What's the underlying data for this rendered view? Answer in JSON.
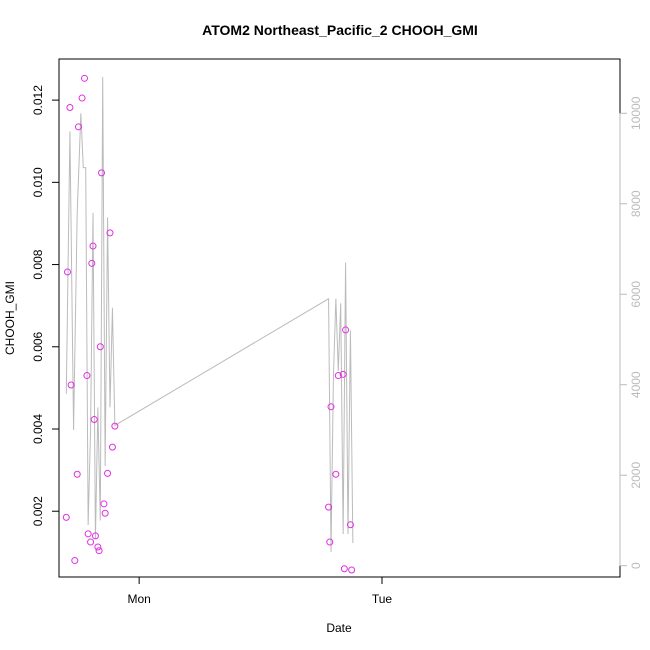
{
  "chart_data": {
    "type": "scatter",
    "title": "ATOM2 Northeast_Pacific_2 CHOOH_GMI",
    "xlabel": "Date",
    "ylabel": "CHOOH_GMI",
    "x_ticks": [
      {
        "label": "Mon",
        "value": 1.0
      },
      {
        "label": "Tue",
        "value": 2.0
      }
    ],
    "xlim": [
      0.67,
      2.98
    ],
    "ylim": [
      0.0004,
      0.013
    ],
    "y_ticks": [
      0.002,
      0.004,
      0.006,
      0.008,
      0.01,
      0.012
    ],
    "y_tick_labels": [
      "0.002",
      "0.004",
      "0.006",
      "0.008",
      "0.010",
      "0.012"
    ],
    "y2lim": [
      -250,
      11200
    ],
    "y2_ticks": [
      0,
      2000,
      4000,
      6000,
      8000,
      10000
    ],
    "y2_tick_labels": [
      "0",
      "2000",
      "4000",
      "6000",
      "8000",
      "10000"
    ],
    "colors": {
      "points": "#e22ee2",
      "line": "#bbbbbb",
      "right_axis": "#bbbbbb",
      "axis": "#000000"
    },
    "series": [
      {
        "type": "scatter",
        "x": [
          0.7,
          0.705,
          0.715,
          0.72,
          0.735,
          0.745,
          0.75,
          0.765,
          0.775,
          0.785,
          0.79,
          0.8,
          0.805,
          0.81,
          0.815,
          0.82,
          0.83,
          0.835,
          0.84,
          0.845,
          0.855,
          0.86,
          0.87,
          0.88,
          0.89,
          0.9,
          1.78,
          1.785,
          1.79,
          1.81,
          1.82,
          1.84,
          1.845,
          1.85,
          1.87,
          1.875
        ],
        "y": [
          0.00185,
          0.00782,
          0.01182,
          0.00507,
          0.0008,
          0.0029,
          0.01135,
          0.01205,
          0.01253,
          0.0053,
          0.00145,
          0.00125,
          0.00803,
          0.00845,
          0.00423,
          0.0014,
          0.00113,
          0.00104,
          0.006,
          0.01023,
          0.00218,
          0.00195,
          0.00292,
          0.00877,
          0.00356,
          0.00407,
          0.0021,
          0.00125,
          0.00454,
          0.0029,
          0.0053,
          0.00533,
          0.0006,
          0.00641,
          0.00167,
          0.00057
        ]
      },
      {
        "type": "line",
        "x": [
          0.7,
          0.715,
          0.73,
          0.745,
          0.76,
          0.77,
          0.78,
          0.79,
          0.8,
          0.81,
          0.82,
          0.83,
          0.84,
          0.85,
          0.86,
          0.87,
          0.88,
          0.89,
          0.9,
          1.78,
          1.79,
          1.8,
          1.81,
          1.82,
          1.83,
          1.84,
          1.85,
          1.86,
          1.87,
          1.88
        ],
        "y": [
          3800,
          9600,
          3000,
          7800,
          10000,
          8800,
          8800,
          900,
          3000,
          7800,
          600,
          3500,
          1000,
          10800,
          2200,
          7700,
          3500,
          5700,
          3100,
          5900,
          300,
          4200,
          5900,
          4300,
          5800,
          700,
          6700,
          700,
          5200,
          500
        ]
      }
    ]
  }
}
